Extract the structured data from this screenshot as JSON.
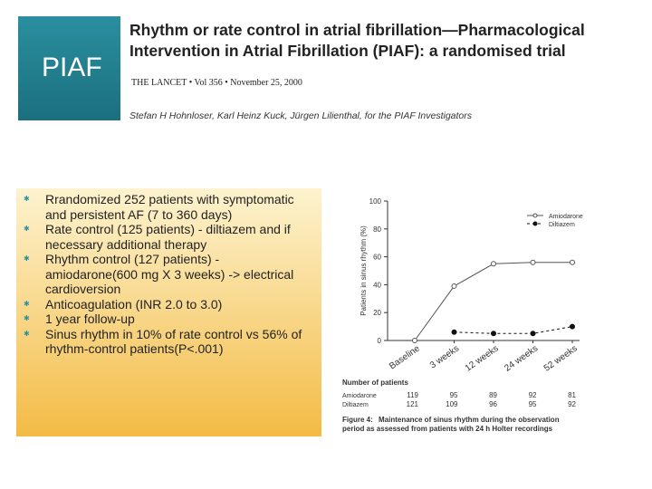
{
  "header": {
    "label": "PIAF",
    "article_title": "Rhythm or rate control in atrial fibrillation—Pharmacological Intervention in Atrial Fibrillation (PIAF): a randomised trial",
    "journal": "THE LANCET • Vol 356 • November 25, 2000",
    "authors": "Stefan H Hohnloser, Karl Heinz Kuck, Jürgen Lilienthal, for the PIAF Investigators"
  },
  "bullets": [
    "Rrandomized 252 patients with symptomatic and persistent AF (7 to 360 days)",
    "Rate control (125 patients) - diltiazem and if necessary  additional therapy",
    "Rhythm control (127 patients) - amiodarone(600 mg X 3 weeks) -> electrical cardioversion",
    "Anticoagulation  (INR 2.0 to 3.0)",
    "1 year follow-up",
    "Sinus rhythm in 10% of rate control  vs 56% of rhythm-control patients(P<.001)"
  ],
  "figure": {
    "type": "line",
    "y_label": "Patients in sinus rhythm (%)",
    "categories": [
      "Baseline",
      "3 weeks",
      "12 weeks",
      "24 weeks",
      "52 weeks"
    ],
    "series": [
      {
        "name": "Amiodarone",
        "color": "#555555",
        "values": [
          0,
          39,
          55,
          56,
          56
        ]
      },
      {
        "name": "Diltiazem",
        "color": "#111111",
        "values": [
          null,
          6,
          5,
          5,
          10
        ]
      }
    ],
    "ylim": [
      0,
      100
    ],
    "yticks": [
      0,
      20,
      40,
      60,
      80,
      100
    ],
    "table_title": "Number of patients",
    "table": [
      {
        "name": "Amiodarone",
        "values": [
          119,
          95,
          89,
          92,
          81
        ]
      },
      {
        "name": "Diltiazem",
        "values": [
          121,
          109,
          96,
          95,
          92
        ]
      }
    ],
    "caption_label": "Figure 4:",
    "caption": "Maintenance of sinus rhythm during the observation period as assessed from patients with 24 h Holter recordings"
  }
}
